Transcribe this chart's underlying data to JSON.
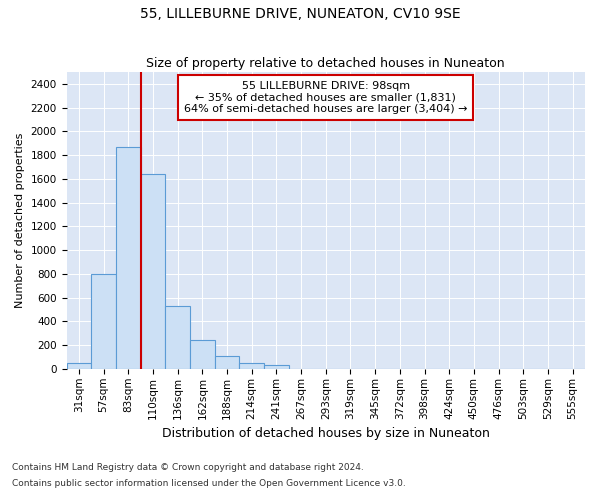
{
  "title": "55, LILLEBURNE DRIVE, NUNEATON, CV10 9SE",
  "subtitle": "Size of property relative to detached houses in Nuneaton",
  "xlabel": "Distribution of detached houses by size in Nuneaton",
  "ylabel": "Number of detached properties",
  "categories": [
    "31sqm",
    "57sqm",
    "83sqm",
    "110sqm",
    "136sqm",
    "162sqm",
    "188sqm",
    "214sqm",
    "241sqm",
    "267sqm",
    "293sqm",
    "319sqm",
    "345sqm",
    "372sqm",
    "398sqm",
    "424sqm",
    "450sqm",
    "476sqm",
    "503sqm",
    "529sqm",
    "555sqm"
  ],
  "values": [
    50,
    800,
    1870,
    1640,
    530,
    240,
    110,
    50,
    30,
    0,
    0,
    0,
    0,
    0,
    0,
    0,
    0,
    0,
    0,
    0,
    0
  ],
  "bar_color": "#cce0f5",
  "bar_edge_color": "#5b9bd5",
  "vline_color": "#cc0000",
  "vline_pos": 2.5,
  "annotation_text": "55 LILLEBURNE DRIVE: 98sqm\n← 35% of detached houses are smaller (1,831)\n64% of semi-detached houses are larger (3,404) →",
  "annotation_box_color": "#ffffff",
  "annotation_box_edge": "#cc0000",
  "ylim_max": 2500,
  "yticks": [
    0,
    200,
    400,
    600,
    800,
    1000,
    1200,
    1400,
    1600,
    1800,
    2000,
    2200,
    2400
  ],
  "footer1": "Contains HM Land Registry data © Crown copyright and database right 2024.",
  "footer2": "Contains public sector information licensed under the Open Government Licence v3.0.",
  "bg_color": "#ffffff",
  "plot_bg_color": "#dce6f5",
  "grid_color": "#ffffff",
  "title_fontsize": 10,
  "subtitle_fontsize": 9,
  "ylabel_fontsize": 8,
  "xlabel_fontsize": 9,
  "tick_fontsize": 7.5,
  "annot_fontsize": 8,
  "footer_fontsize": 6.5
}
